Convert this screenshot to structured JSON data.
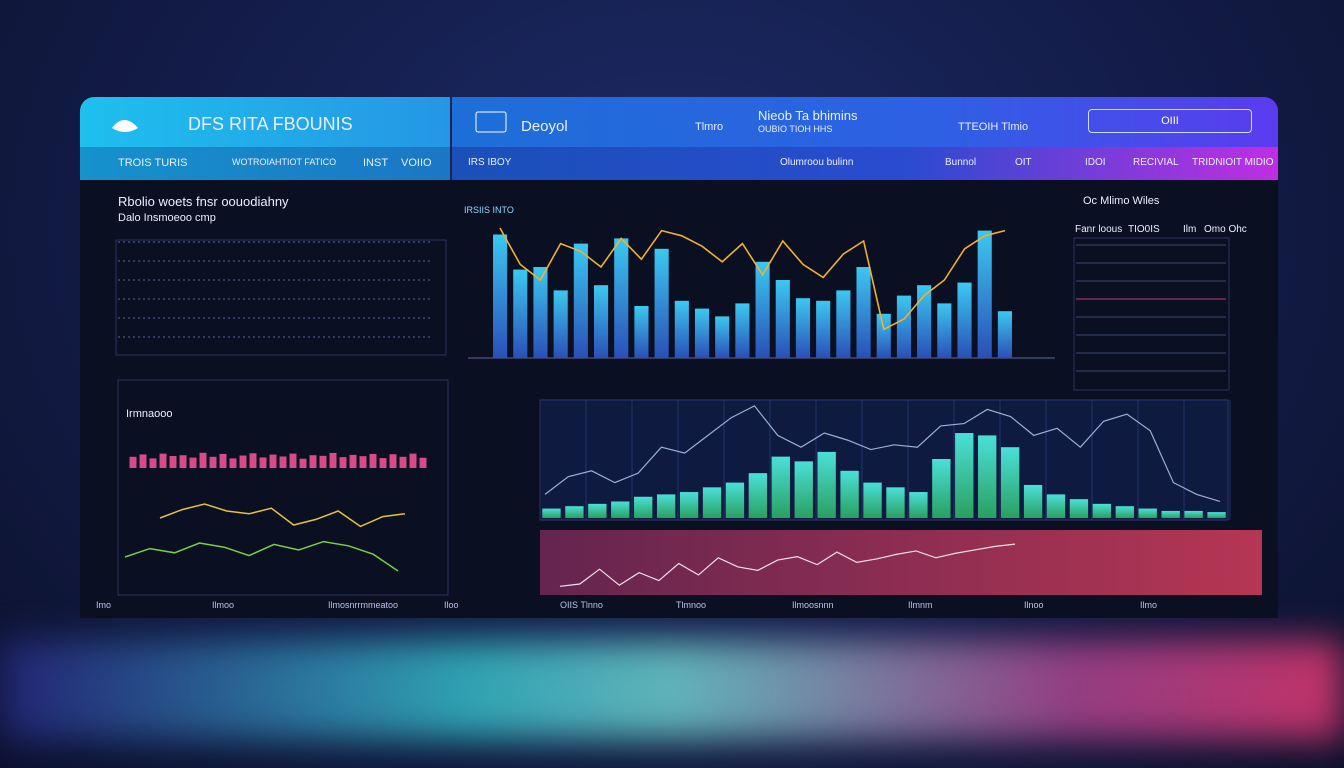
{
  "left_header": {
    "title": "DFS RITA FBOUNIS",
    "tabs": [
      "TROIS TURIS",
      "WOTROIAHTIOT FATICO",
      "INST",
      "VOIIO"
    ]
  },
  "right_header": {
    "name": "Deoyol",
    "item": "Tlmro",
    "heading": "Nieob Ta bhimins",
    "subheading": "OUBIO TIOH HHS",
    "status": "TTEOIH Tlmio",
    "button": "OIII",
    "tabs": [
      "IRS IBOY",
      "Olumroou bulinn",
      "Bunnol",
      "OIT",
      "IDOI",
      "RECIVIAL",
      "TRIDNIOIT MIDIO"
    ]
  },
  "left_panel": {
    "title": "Rbolio woets fnsr oouodiahny",
    "subtitle": "Dalo Insmoeoo cmp",
    "section": "Irmnaooo"
  },
  "right_panel": {
    "title": "Oc Mlimo Wiles",
    "labels": [
      "Fanr loous",
      "TIO0IS",
      "Ilm",
      "Omo Ohc"
    ]
  },
  "main_chart": {
    "title": "IRSIIS INTO",
    "ylim": [
      0,
      100
    ],
    "bars": [
      95,
      68,
      70,
      52,
      88,
      56,
      92,
      40,
      84,
      44,
      38,
      32,
      42,
      74,
      60,
      46,
      44,
      52,
      70,
      34,
      48,
      56,
      42,
      58,
      98,
      36
    ],
    "line": [
      100,
      72,
      60,
      88,
      82,
      70,
      92,
      76,
      98,
      94,
      86,
      74,
      88,
      64,
      90,
      72,
      62,
      80,
      90,
      22,
      30,
      48,
      60,
      84,
      94,
      98
    ]
  },
  "trend_chart": {
    "ylim": [
      0,
      100
    ],
    "bars": [
      8,
      10,
      12,
      14,
      18,
      20,
      22,
      26,
      30,
      38,
      52,
      48,
      56,
      40,
      30,
      26,
      22,
      50,
      72,
      70,
      60,
      28,
      20,
      16,
      12,
      10,
      8,
      6,
      6,
      5
    ],
    "line": [
      20,
      35,
      40,
      30,
      38,
      60,
      55,
      70,
      85,
      95,
      70,
      60,
      72,
      66,
      58,
      62,
      60,
      78,
      80,
      92,
      86,
      70,
      76,
      60,
      82,
      88,
      74,
      30,
      20,
      14
    ]
  },
  "volume_chart": {
    "ylim": [
      0,
      100
    ],
    "line": [
      10,
      14,
      40,
      12,
      34,
      20,
      50,
      30,
      60,
      44,
      38,
      56,
      62,
      48,
      70,
      52,
      58,
      66,
      72,
      60,
      68,
      74,
      80,
      84
    ]
  },
  "left_charts": {
    "ylim": [
      0,
      100
    ],
    "bars": [
      70,
      85,
      60,
      90,
      75,
      80,
      65,
      95,
      70,
      88,
      60,
      78,
      92,
      66,
      84,
      72,
      90,
      58,
      80,
      76,
      94,
      68,
      82,
      74,
      88,
      62,
      86,
      70,
      90,
      64
    ],
    "line_a": [
      60,
      72,
      80,
      70,
      66,
      74,
      50,
      58,
      70,
      48,
      62,
      66
    ],
    "line_b": [
      40,
      52,
      46,
      60,
      54,
      42,
      58,
      50,
      62,
      56,
      44,
      20
    ]
  },
  "footer": [
    "Imo",
    "Ilmoo",
    "Ilmosnrrmmeatoo",
    "Iloo",
    "OIIS Tlnno",
    "Tlmnoo",
    "Ilmoosnnn",
    "Ilmnm",
    "Ilnoo",
    "Ilmo"
  ]
}
